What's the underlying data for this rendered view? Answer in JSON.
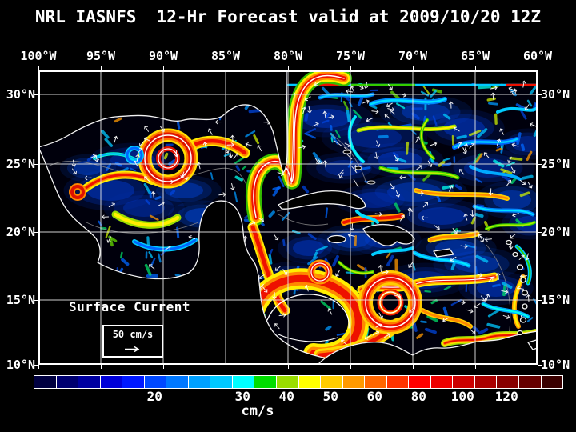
{
  "title": "NRL IASNFS  12-Hr Forecast valid at 2009/10/20 12Z",
  "map": {
    "lon_labels": [
      "100°W",
      "95°W",
      "90°W",
      "85°W",
      "80°W",
      "75°W",
      "70°W",
      "65°W",
      "60°W"
    ],
    "lat_labels": [
      "30°N",
      "25°N",
      "20°N",
      "15°N",
      "10°N"
    ],
    "overlay": {
      "label": "Surface Current",
      "scale_label": "50 cm/s"
    }
  },
  "colorbar": {
    "unit": "cm/s",
    "colors": [
      "#000040",
      "#000070",
      "#0000a0",
      "#0000d8",
      "#0018ff",
      "#0048ff",
      "#0078ff",
      "#00a0ff",
      "#00c8ff",
      "#00ffff",
      "#00dd00",
      "#99dd00",
      "#ffff00",
      "#ffcc00",
      "#ff9900",
      "#ff6600",
      "#ff3300",
      "#ff0000",
      "#ee0000",
      "#cc0000",
      "#aa0000",
      "#880000",
      "#660000",
      "#3a0000"
    ],
    "labels": [
      {
        "text": "20",
        "segment": 5
      },
      {
        "text": "30",
        "segment": 9
      },
      {
        "text": "40",
        "segment": 11
      },
      {
        "text": "50",
        "segment": 13
      },
      {
        "text": "60",
        "segment": 15
      },
      {
        "text": "80",
        "segment": 17
      },
      {
        "text": "100",
        "segment": 19
      },
      {
        "text": "120",
        "segment": 21
      }
    ]
  }
}
